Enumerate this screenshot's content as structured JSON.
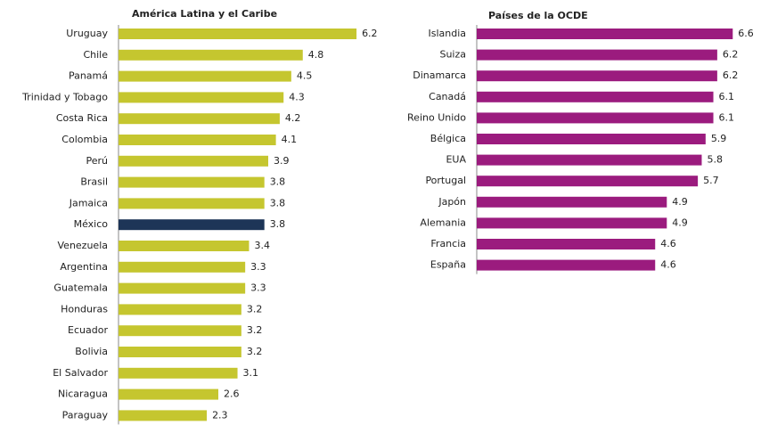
{
  "chart_data": [
    {
      "type": "bar",
      "orientation": "horizontal",
      "title": "América Latina y el Caribe",
      "categories": [
        "Uruguay",
        "Chile",
        "Panamá",
        "Trinidad y Tobago",
        "Costa Rica",
        "Colombia",
        "Perú",
        "Brasil",
        "Jamaica",
        "México",
        "Venezuela",
        "Argentina",
        "Guatemala",
        "Honduras",
        "Ecuador",
        "Bolivia",
        "El Salvador",
        "Nicaragua",
        "Paraguay"
      ],
      "values": [
        6.2,
        4.8,
        4.5,
        4.3,
        4.2,
        4.1,
        3.9,
        3.8,
        3.8,
        3.8,
        3.4,
        3.3,
        3.3,
        3.2,
        3.2,
        3.2,
        3.1,
        2.6,
        2.3
      ],
      "colors": [
        "#c5c62f",
        "#c5c62f",
        "#c5c62f",
        "#c5c62f",
        "#c5c62f",
        "#c5c62f",
        "#c5c62f",
        "#c5c62f",
        "#c5c62f",
        "#1d3557",
        "#c5c62f",
        "#c5c62f",
        "#c5c62f",
        "#c5c62f",
        "#c5c62f",
        "#c5c62f",
        "#c5c62f",
        "#c5c62f",
        "#c5c62f"
      ],
      "xlim": [
        0,
        6.5
      ]
    },
    {
      "type": "bar",
      "orientation": "horizontal",
      "title": "Países de la OCDE",
      "categories": [
        "Islandia",
        "Suiza",
        "Dinamarca",
        "Canadá",
        "Reino Unido",
        "Bélgica",
        "EUA",
        "Portugal",
        "Japón",
        "Alemania",
        "Francia",
        "España"
      ],
      "values": [
        6.6,
        6.2,
        6.2,
        6.1,
        6.1,
        5.9,
        5.8,
        5.7,
        4.9,
        4.9,
        4.6,
        4.6
      ],
      "color": "#9b1b7e",
      "xlim": [
        0,
        6.8
      ]
    }
  ]
}
